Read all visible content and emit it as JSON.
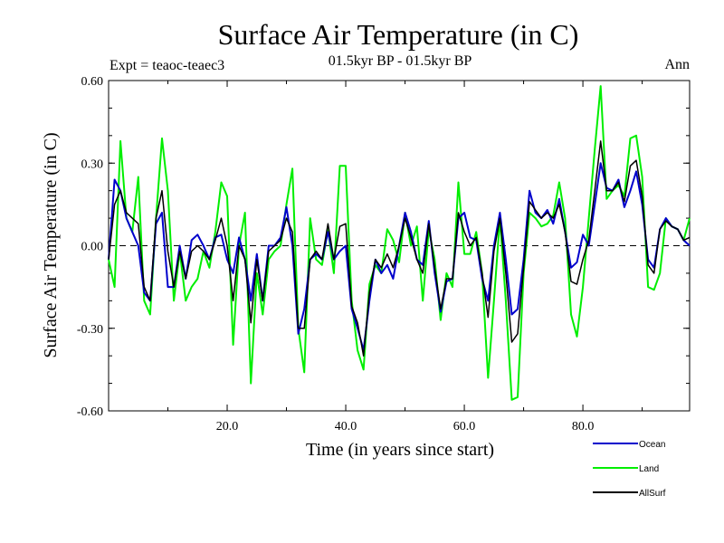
{
  "chart_data": {
    "type": "line",
    "title": "Surface Air Temperature (in C)",
    "subtitle": "01.5kyr BP - 01.5kyr BP",
    "left_label": "Expt = teaoc-teaec3",
    "right_label": "Ann",
    "xlabel": "Time (in years since start)",
    "ylabel": "Surface Air Temperature (in C)",
    "xlim": [
      0,
      98
    ],
    "ylim": [
      -0.6,
      0.6
    ],
    "x_ticks": [
      20,
      40,
      60,
      80
    ],
    "x_tick_labels": [
      "20.0",
      "40.0",
      "60.0",
      "80.0"
    ],
    "y_ticks": [
      -0.6,
      -0.3,
      0.0,
      0.3,
      0.6
    ],
    "y_tick_labels": [
      "-0.60",
      "-0.30",
      "0.00",
      "0.30",
      "0.60"
    ],
    "reference_line": 0.0,
    "legend_position": "bottom-right",
    "series": [
      {
        "name": "Land",
        "color": "#00ee00",
        "values": [
          -0.05,
          -0.15,
          0.38,
          0.1,
          0.05,
          0.25,
          -0.2,
          -0.25,
          0.1,
          0.39,
          0.2,
          -0.2,
          -0.02,
          -0.2,
          -0.15,
          -0.12,
          -0.02,
          -0.08,
          0.05,
          0.23,
          0.18,
          -0.36,
          0.0,
          0.12,
          -0.5,
          -0.1,
          -0.25,
          -0.05,
          -0.02,
          0.0,
          0.15,
          0.28,
          -0.3,
          -0.46,
          0.1,
          -0.05,
          -0.07,
          0.06,
          -0.1,
          0.29,
          0.29,
          -0.2,
          -0.38,
          -0.45,
          -0.14,
          -0.07,
          -0.1,
          0.06,
          0.02,
          -0.06,
          0.12,
          0.0,
          0.07,
          -0.2,
          0.06,
          -0.05,
          -0.27,
          -0.1,
          -0.15,
          0.23,
          -0.03,
          -0.03,
          0.05,
          -0.1,
          -0.48,
          -0.2,
          0.1,
          -0.2,
          -0.56,
          -0.55,
          -0.1,
          0.12,
          0.1,
          0.07,
          0.08,
          0.11,
          0.23,
          0.1,
          -0.25,
          -0.33,
          -0.15,
          0.1,
          0.35,
          0.58,
          0.17,
          0.2,
          0.22,
          0.18,
          0.39,
          0.4,
          0.25,
          -0.15,
          -0.16,
          -0.1,
          0.1,
          0.07,
          0.06,
          0.02,
          0.1
        ],
        "line_width": 2
      },
      {
        "name": "Ocean",
        "color": "#0000cc",
        "values": [
          -0.05,
          0.24,
          0.2,
          0.1,
          0.05,
          0.0,
          -0.17,
          -0.2,
          0.08,
          0.12,
          -0.15,
          -0.15,
          0.0,
          -0.12,
          0.02,
          0.04,
          0.0,
          -0.05,
          0.03,
          0.04,
          -0.05,
          -0.1,
          0.03,
          -0.05,
          -0.2,
          -0.03,
          -0.2,
          0.0,
          0.0,
          0.03,
          0.14,
          0.0,
          -0.32,
          -0.23,
          -0.05,
          -0.03,
          -0.05,
          0.05,
          -0.05,
          -0.02,
          0.0,
          -0.23,
          -0.3,
          -0.38,
          -0.2,
          -0.05,
          -0.1,
          -0.07,
          -0.12,
          0.0,
          0.12,
          0.05,
          -0.05,
          -0.07,
          0.09,
          -0.1,
          -0.24,
          -0.13,
          -0.12,
          0.1,
          0.12,
          0.03,
          0.02,
          -0.12,
          -0.2,
          0.0,
          0.12,
          -0.05,
          -0.25,
          -0.23,
          -0.05,
          0.2,
          0.12,
          0.1,
          0.13,
          0.08,
          0.17,
          0.05,
          -0.08,
          -0.06,
          0.04,
          0.0,
          0.15,
          0.3,
          0.21,
          0.2,
          0.24,
          0.14,
          0.2,
          0.27,
          0.15,
          -0.05,
          -0.08,
          0.06,
          0.1,
          0.07,
          0.06,
          0.02,
          0.0
        ],
        "line_width": 2
      },
      {
        "name": "AllSurf",
        "color": "#000000",
        "values": [
          -0.05,
          0.15,
          0.2,
          0.12,
          0.1,
          0.08,
          -0.15,
          -0.2,
          0.1,
          0.2,
          -0.02,
          -0.15,
          -0.02,
          -0.12,
          -0.02,
          0.0,
          -0.02,
          -0.05,
          0.02,
          0.1,
          0.0,
          -0.2,
          0.0,
          -0.05,
          -0.28,
          -0.05,
          -0.2,
          -0.02,
          0.0,
          0.02,
          0.1,
          0.05,
          -0.3,
          -0.3,
          -0.05,
          -0.02,
          -0.05,
          0.08,
          -0.05,
          0.07,
          0.08,
          -0.22,
          -0.28,
          -0.4,
          -0.17,
          -0.05,
          -0.08,
          -0.03,
          -0.08,
          0.0,
          0.1,
          0.03,
          -0.05,
          -0.1,
          0.08,
          -0.08,
          -0.23,
          -0.12,
          -0.12,
          0.12,
          0.05,
          0.0,
          0.03,
          -0.1,
          -0.26,
          -0.02,
          0.1,
          -0.1,
          -0.35,
          -0.32,
          -0.08,
          0.16,
          0.13,
          0.1,
          0.12,
          0.1,
          0.15,
          0.05,
          -0.13,
          -0.14,
          -0.05,
          0.02,
          0.2,
          0.38,
          0.2,
          0.2,
          0.23,
          0.16,
          0.29,
          0.31,
          0.18,
          -0.07,
          -0.1,
          0.06,
          0.09,
          0.07,
          0.06,
          0.02,
          0.03
        ],
        "line_width": 1.5
      }
    ]
  }
}
